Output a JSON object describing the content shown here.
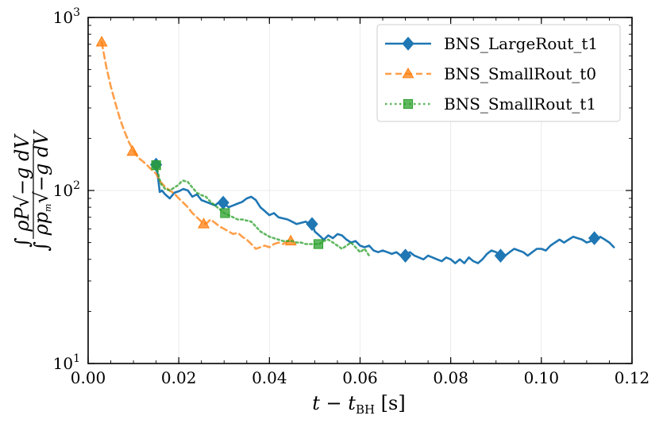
{
  "chart_data": {
    "type": "line",
    "title": "",
    "xlabel": "t − t",
    "xlabel_sub": "BH",
    "xlabel_unit": " [s]",
    "ylabel_lines": [
      "∫ ρP√−g dV",
      "∫ ρp",
      "√−g dV"
    ],
    "ylabel_sub": "m",
    "xlim": [
      0.0,
      0.12
    ],
    "ylim": [
      10,
      1000
    ],
    "yscale": "log",
    "grid": true,
    "legend_position": "top-right",
    "x_ticks": [
      0.0,
      0.02,
      0.04,
      0.06,
      0.08,
      0.1,
      0.12
    ],
    "x_tick_labels": [
      "0.00",
      "0.02",
      "0.04",
      "0.06",
      "0.08",
      "0.10",
      "0.12"
    ],
    "y_ticks": [
      {
        "value": 10,
        "base": "10",
        "exp": "1"
      },
      {
        "value": 100,
        "base": "10",
        "exp": "2"
      },
      {
        "value": 1000,
        "base": "10",
        "exp": "3"
      }
    ],
    "series": [
      {
        "name": "BNS_LargeRout_t1",
        "color": "#1f77b4",
        "line_style": "solid",
        "marker": "diamond",
        "x": [
          0.015,
          0.0154,
          0.0158,
          0.0163,
          0.017,
          0.018,
          0.019,
          0.02,
          0.021,
          0.022,
          0.023,
          0.024,
          0.025,
          0.026,
          0.027,
          0.028,
          0.029,
          0.03,
          0.031,
          0.032,
          0.033,
          0.034,
          0.035,
          0.036,
          0.037,
          0.038,
          0.039,
          0.04,
          0.041,
          0.042,
          0.043,
          0.044,
          0.045,
          0.046,
          0.047,
          0.048,
          0.049,
          0.0495,
          0.05,
          0.051,
          0.052,
          0.053,
          0.054,
          0.055,
          0.056,
          0.057,
          0.058,
          0.059,
          0.06,
          0.061,
          0.062,
          0.063,
          0.064,
          0.065,
          0.066,
          0.067,
          0.068,
          0.069,
          0.07,
          0.071,
          0.072,
          0.073,
          0.074,
          0.075,
          0.076,
          0.077,
          0.078,
          0.079,
          0.08,
          0.081,
          0.082,
          0.083,
          0.084,
          0.085,
          0.086,
          0.087,
          0.088,
          0.089,
          0.09,
          0.091,
          0.092,
          0.093,
          0.094,
          0.095,
          0.096,
          0.097,
          0.098,
          0.099,
          0.1,
          0.101,
          0.102,
          0.103,
          0.104,
          0.105,
          0.106,
          0.107,
          0.108,
          0.109,
          0.11,
          0.111,
          0.112,
          0.113,
          0.114,
          0.115,
          0.116
        ],
        "y": [
          140,
          120,
          98,
          100,
          95,
          90,
          97,
          99,
          102,
          100,
          92,
          95,
          88,
          86,
          84,
          82,
          86,
          84,
          80,
          82,
          84,
          86,
          90,
          92,
          88,
          80,
          76,
          72,
          74,
          70,
          69,
          68,
          66,
          64,
          65,
          66,
          64,
          64,
          58,
          55,
          52,
          55,
          53,
          56,
          55,
          52,
          50,
          51,
          48,
          47,
          48,
          45,
          44,
          45,
          44,
          43,
          44,
          42,
          42,
          44,
          42,
          41,
          40,
          42,
          41,
          40,
          39,
          41,
          40,
          38,
          40,
          38,
          41,
          39,
          38,
          40,
          43,
          45,
          44,
          42,
          42,
          44,
          46,
          45,
          44,
          42,
          44,
          46,
          46,
          45,
          48,
          50,
          52,
          50,
          52,
          54,
          53,
          52,
          50,
          51,
          52,
          54,
          52,
          50,
          47
        ],
        "marker_x": [
          0.015,
          0.0298,
          0.0494,
          0.07,
          0.091,
          0.1117
        ],
        "marker_y": [
          141,
          85,
          64,
          42,
          42,
          53
        ]
      },
      {
        "name": "BNS_SmallRout_t0",
        "color": "#ff7f0e",
        "line_style": "dashed",
        "marker": "triangle",
        "x": [
          0.003,
          0.004,
          0.005,
          0.006,
          0.007,
          0.008,
          0.009,
          0.01,
          0.011,
          0.012,
          0.013,
          0.014,
          0.015,
          0.016,
          0.017,
          0.018,
          0.019,
          0.02,
          0.021,
          0.022,
          0.023,
          0.024,
          0.025,
          0.026,
          0.027,
          0.028,
          0.029,
          0.03,
          0.031,
          0.032,
          0.033,
          0.034,
          0.035,
          0.036,
          0.037,
          0.038,
          0.039,
          0.04,
          0.041,
          0.042,
          0.043,
          0.044,
          0.045
        ],
        "y": [
          720,
          520,
          400,
          320,
          260,
          220,
          190,
          170,
          155,
          148,
          140,
          132,
          125,
          112,
          105,
          100,
          96,
          90,
          85,
          80,
          74,
          70,
          66,
          64,
          68,
          65,
          62,
          60,
          58,
          56,
          57,
          54,
          52,
          49,
          46,
          47,
          48,
          47,
          49,
          50,
          49,
          51,
          51
        ],
        "marker_x": [
          0.003,
          0.0098,
          0.0255,
          0.0447
        ],
        "marker_y": [
          720,
          168,
          64,
          51
        ]
      },
      {
        "name": "BNS_SmallRout_t1",
        "color": "#2ca02c",
        "line_style": "dotted",
        "marker": "square",
        "x": [
          0.015,
          0.016,
          0.017,
          0.018,
          0.019,
          0.02,
          0.0205,
          0.021,
          0.022,
          0.023,
          0.024,
          0.025,
          0.026,
          0.027,
          0.028,
          0.029,
          0.03,
          0.031,
          0.032,
          0.033,
          0.034,
          0.035,
          0.036,
          0.037,
          0.038,
          0.039,
          0.04,
          0.041,
          0.042,
          0.043,
          0.044,
          0.045,
          0.046,
          0.047,
          0.048,
          0.049,
          0.05,
          0.051,
          0.052,
          0.053,
          0.054,
          0.055,
          0.056,
          0.057,
          0.058,
          0.059,
          0.06,
          0.061,
          0.062
        ],
        "y": [
          140,
          110,
          102,
          100,
          104,
          108,
          112,
          114,
          112,
          104,
          97,
          94,
          92,
          86,
          82,
          78,
          74,
          72,
          70,
          68,
          68,
          67,
          66,
          62,
          58,
          56,
          54,
          53,
          52,
          51,
          51,
          51,
          50,
          50,
          49,
          49,
          49,
          49,
          51,
          52,
          50,
          48,
          46,
          48,
          50,
          47,
          44,
          46,
          42
        ],
        "marker_x": [
          0.015,
          0.0302,
          0.0508
        ],
        "marker_y": [
          140,
          74,
          49
        ]
      }
    ]
  }
}
